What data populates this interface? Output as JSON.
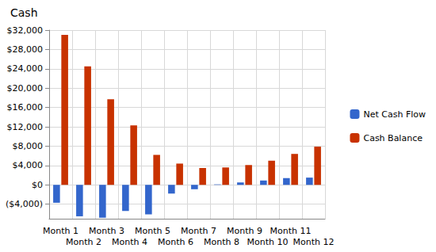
{
  "chart_data": {
    "type": "bar",
    "title": "Cash",
    "categories": [
      "Month 1",
      "Month 2",
      "Month 3",
      "Month 4",
      "Month 5",
      "Month 6",
      "Month 7",
      "Month 8",
      "Month 9",
      "Month 10",
      "Month 11",
      "Month 12"
    ],
    "series": [
      {
        "name": "Net Cash Flow",
        "color": "#3366cc",
        "values": [
          -3700,
          -6500,
          -6800,
          -5400,
          -6100,
          -1800,
          -900,
          100,
          500,
          900,
          1400,
          1500
        ]
      },
      {
        "name": "Cash Balance",
        "color": "#c83200",
        "values": [
          31000,
          24500,
          17700,
          12300,
          6200,
          4400,
          3500,
          3600,
          4100,
          5000,
          6400,
          7900
        ]
      }
    ],
    "ylim": [
      -7000,
      32000
    ],
    "yticks": [
      {
        "value": -4000,
        "label": "($4,000)"
      },
      {
        "value": 0,
        "label": "$0"
      },
      {
        "value": 4000,
        "label": "$4,000"
      },
      {
        "value": 8000,
        "label": "$8,000"
      },
      {
        "value": 12000,
        "label": "$12,000"
      },
      {
        "value": 16000,
        "label": "$16,000"
      },
      {
        "value": 20000,
        "label": "$20,000"
      },
      {
        "value": 24000,
        "label": "$24,000"
      },
      {
        "value": 28000,
        "label": "$28,000"
      },
      {
        "value": 32000,
        "label": "$32,000"
      }
    ],
    "grid": true,
    "legend": "right"
  }
}
